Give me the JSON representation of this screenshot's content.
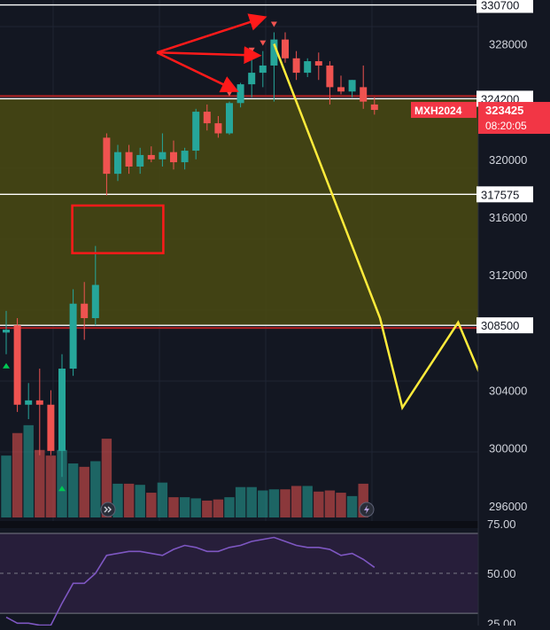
{
  "colors": {
    "background": "#131722",
    "axis_text": "#d1d4dc",
    "grid": "#1f2433",
    "up": "#26a69a",
    "down": "#ef5350",
    "zone_fill": "#4a4a12",
    "level_line": "#ffffff",
    "zone_border": "#b22222",
    "projection": "#ffeb3b",
    "annotation": "#ff1a1a",
    "rsi_line": "#7e57c2",
    "rsi_band": "#2a1f3d",
    "price_tag_bg": "#f23645",
    "axis_label_bg": "#ffffff",
    "axis_label_text": "#131722"
  },
  "icons": {
    "left_marker": "double-chevron-right-icon",
    "right_marker": "lightning-icon"
  },
  "chart_data": {
    "type": "candlestick",
    "symbol": "MXH2024",
    "last_price": "323425",
    "countdown": "08:20:05",
    "price_axis": {
      "ylim": [
        293500,
        331500
      ],
      "ticks": [
        "328000",
        "320000",
        "316000",
        "312000",
        "304000",
        "300000",
        "296000"
      ]
    },
    "levels": [
      {
        "value": 330700,
        "label": "330700"
      },
      {
        "value": 324200,
        "label": "324200"
      },
      {
        "value": 317575,
        "label": "317575"
      },
      {
        "value": 308500,
        "label": "308500"
      }
    ],
    "zone": {
      "from": 308500,
      "to": 324200
    },
    "candles": [
      {
        "o": 308000,
        "h": 309500,
        "l": 306500,
        "c": 308200,
        "vol": 0.55
      },
      {
        "o": 308500,
        "h": 309000,
        "l": 302500,
        "c": 303000,
        "vol": 0.75
      },
      {
        "o": 303000,
        "h": 304500,
        "l": 302000,
        "c": 303300,
        "vol": 0.82
      },
      {
        "o": 303300,
        "h": 305500,
        "l": 299500,
        "c": 303000,
        "vol": 0.6
      },
      {
        "o": 303000,
        "h": 304000,
        "l": 299500,
        "c": 299800,
        "vol": 0.55
      },
      {
        "o": 299800,
        "h": 306500,
        "l": 298000,
        "c": 305500,
        "vol": 0.6
      },
      {
        "o": 305500,
        "h": 311000,
        "l": 305000,
        "c": 310000,
        "vol": 0.48
      },
      {
        "o": 310000,
        "h": 311500,
        "l": 307500,
        "c": 309000,
        "vol": 0.45
      },
      {
        "o": 309000,
        "h": 314000,
        "l": 308500,
        "c": 311300,
        "vol": 0.5
      },
      {
        "o": 321500,
        "h": 321800,
        "l": 317500,
        "c": 319000,
        "vol": 0.7
      },
      {
        "o": 319000,
        "h": 321000,
        "l": 318500,
        "c": 320500,
        "vol": 0.3
      },
      {
        "o": 320500,
        "h": 321000,
        "l": 319000,
        "c": 319500,
        "vol": 0.3
      },
      {
        "o": 319500,
        "h": 320800,
        "l": 319000,
        "c": 320300,
        "vol": 0.29
      },
      {
        "o": 320300,
        "h": 320900,
        "l": 319800,
        "c": 320000,
        "vol": 0.22
      },
      {
        "o": 320000,
        "h": 321800,
        "l": 319500,
        "c": 320500,
        "vol": 0.31
      },
      {
        "o": 320500,
        "h": 321300,
        "l": 319300,
        "c": 319800,
        "vol": 0.18
      },
      {
        "o": 319800,
        "h": 320800,
        "l": 319300,
        "c": 320600,
        "vol": 0.18
      },
      {
        "o": 320600,
        "h": 323500,
        "l": 320000,
        "c": 323300,
        "vol": 0.17
      },
      {
        "o": 323300,
        "h": 323800,
        "l": 322000,
        "c": 322500,
        "vol": 0.15
      },
      {
        "o": 322500,
        "h": 323000,
        "l": 321500,
        "c": 321800,
        "vol": 0.16
      },
      {
        "o": 321800,
        "h": 324000,
        "l": 321700,
        "c": 323900,
        "vol": 0.18
      },
      {
        "o": 323900,
        "h": 325300,
        "l": 323600,
        "c": 325200,
        "vol": 0.27
      },
      {
        "o": 325200,
        "h": 327000,
        "l": 324300,
        "c": 326000,
        "vol": 0.27
      },
      {
        "o": 326000,
        "h": 327500,
        "l": 325000,
        "c": 326500,
        "vol": 0.24
      },
      {
        "o": 326500,
        "h": 328800,
        "l": 324000,
        "c": 328300,
        "vol": 0.25
      },
      {
        "o": 328300,
        "h": 328800,
        "l": 326700,
        "c": 327000,
        "vol": 0.25
      },
      {
        "o": 327000,
        "h": 327500,
        "l": 325500,
        "c": 326000,
        "vol": 0.28
      },
      {
        "o": 326000,
        "h": 327000,
        "l": 325700,
        "c": 326800,
        "vol": 0.28
      },
      {
        "o": 326800,
        "h": 327400,
        "l": 325500,
        "c": 326500,
        "vol": 0.23
      },
      {
        "o": 326500,
        "h": 326800,
        "l": 323800,
        "c": 325000,
        "vol": 0.24
      },
      {
        "o": 325000,
        "h": 325800,
        "l": 324500,
        "c": 324700,
        "vol": 0.22
      },
      {
        "o": 324700,
        "h": 325500,
        "l": 324300,
        "c": 325500,
        "vol": 0.19
      },
      {
        "o": 325000,
        "h": 326500,
        "l": 323500,
        "c": 324000,
        "vol": 0.3
      },
      {
        "o": 323800,
        "h": 324300,
        "l": 323100,
        "c": 323425,
        "vol": 0.0
      }
    ],
    "markers": [
      {
        "candle": 0,
        "dir": "up",
        "pos": "below"
      },
      {
        "candle": 5,
        "dir": "up",
        "pos": "below"
      },
      {
        "candle": 20,
        "dir": "down",
        "pos": "above"
      },
      {
        "candle": 22,
        "dir": "down",
        "pos": "above"
      },
      {
        "candle": 23,
        "dir": "down",
        "pos": "above"
      },
      {
        "candle": 24,
        "dir": "down",
        "pos": "above"
      }
    ],
    "projection": [
      {
        "candle": 24,
        "price": 328000
      },
      {
        "candle": 33.5,
        "price": 309000
      },
      {
        "candle": 35.5,
        "price": 302800
      },
      {
        "candle": 40.5,
        "price": 308700
      },
      {
        "candle": 45.5,
        "price": 299500
      }
    ],
    "box": {
      "from_candle": 6,
      "to_candle": 14,
      "top": 316800,
      "bottom": 313500
    },
    "arrows": {
      "origin": {
        "candle": 13.5,
        "price": 327400
      },
      "targets": [
        {
          "candle": 23,
          "price": 329800
        },
        {
          "candle": 22.5,
          "price": 327200
        },
        {
          "candle": 20.5,
          "price": 324800
        }
      ]
    },
    "rsi": {
      "ticks": [
        "75.00",
        "50.00",
        "25.00"
      ],
      "ylim": [
        20,
        78
      ],
      "band": [
        30,
        70
      ],
      "values": [
        28,
        25,
        25,
        24,
        24,
        35,
        45,
        45,
        50,
        59,
        60,
        61,
        61,
        60,
        59,
        62,
        64,
        63,
        61,
        61,
        63,
        64,
        66,
        67,
        68,
        66,
        64,
        63,
        63,
        62,
        59,
        60,
        57,
        53
      ]
    }
  }
}
